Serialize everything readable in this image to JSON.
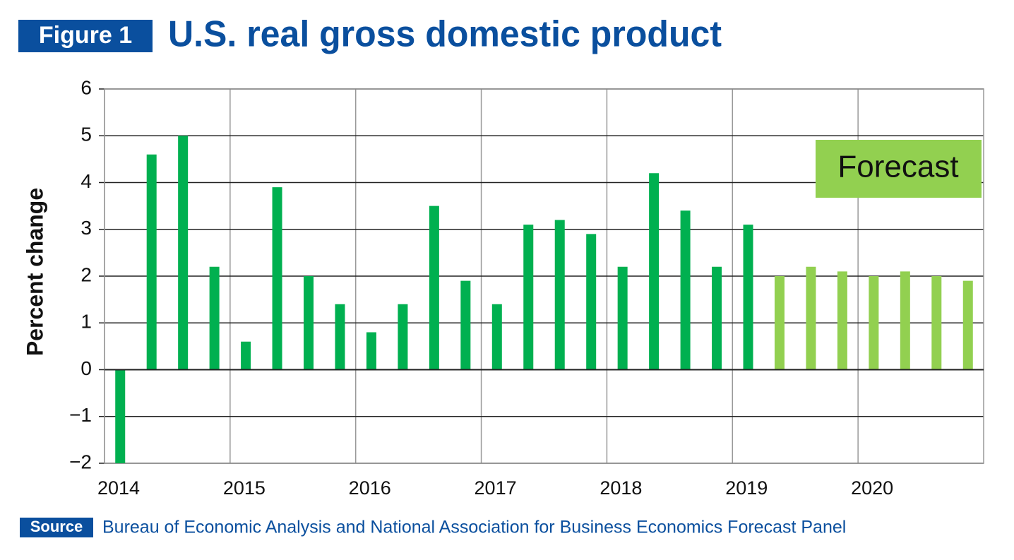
{
  "chart_data": {
    "type": "bar",
    "badge": "Figure 1",
    "title": "U.S. real gross domestic product",
    "ylabel": "Percent change",
    "annotation": "Forecast",
    "source_label": "Source",
    "source": "Bureau of Economic Analysis and National Association for Business Economics Forecast Panel",
    "x": [
      2014,
      2014.25,
      2014.5,
      2014.75,
      2015,
      2015.25,
      2015.5,
      2015.75,
      2016,
      2016.25,
      2016.5,
      2016.75,
      2017,
      2017.25,
      2017.5,
      2017.75,
      2018,
      2018.25,
      2018.5,
      2018.75,
      2019,
      2019.25,
      2019.5,
      2019.75,
      2020,
      2020.25,
      2020.5,
      2020.75
    ],
    "values": [
      -2.0,
      4.6,
      5.0,
      2.2,
      0.6,
      3.9,
      2.0,
      1.4,
      0.8,
      1.4,
      3.5,
      1.9,
      1.4,
      3.1,
      3.2,
      2.9,
      2.2,
      4.2,
      3.4,
      2.2,
      3.1,
      2.0,
      2.2,
      2.1,
      2.0,
      2.1,
      2.0,
      1.9
    ],
    "colors": [
      "#00b050",
      "#00b050",
      "#00b050",
      "#00b050",
      "#00b050",
      "#00b050",
      "#00b050",
      "#00b050",
      "#00b050",
      "#00b050",
      "#00b050",
      "#00b050",
      "#00b050",
      "#00b050",
      "#00b050",
      "#00b050",
      "#00b050",
      "#00b050",
      "#00b050",
      "#00b050",
      "#00b050",
      "#92d050",
      "#92d050",
      "#92d050",
      "#92d050",
      "#92d050",
      "#92d050",
      "#92d050"
    ],
    "xlim": [
      2014,
      2021
    ],
    "xticks": [
      2014,
      2015,
      2016,
      2017,
      2018,
      2019,
      2020
    ],
    "ylim": [
      -2,
      6
    ],
    "yticks": [
      {
        "value": -2,
        "label": "−2"
      },
      {
        "value": -1,
        "label": "−1"
      },
      0,
      1,
      2,
      3,
      4,
      5,
      6
    ],
    "grid": true
  }
}
